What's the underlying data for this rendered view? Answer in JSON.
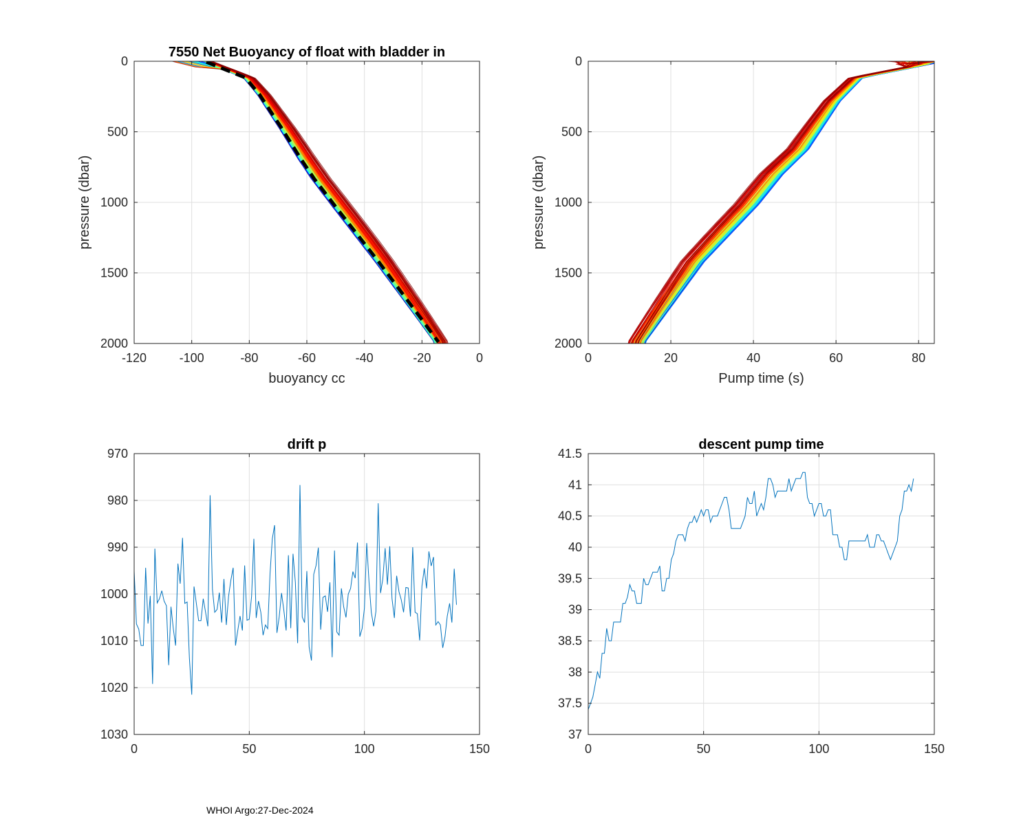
{
  "footer": "WHOI Argo:27-Dec-2024",
  "chart_data": [
    {
      "type": "line",
      "id": "buoyancy",
      "title": "7550 Net Buoyancy of float with bladder in",
      "xlabel": "buoyancy cc",
      "ylabel": "pressure (dbar)",
      "xlim": [
        -120,
        0
      ],
      "ylim": [
        0,
        2000
      ],
      "y_reversed": true,
      "grid": true,
      "xticks": [
        "-120",
        "-100",
        "-80",
        "-60",
        "-40",
        "-20",
        "0"
      ],
      "xtick_values": [
        -120,
        -100,
        -80,
        -60,
        -40,
        -20,
        0
      ],
      "yticks": [
        "0",
        "500",
        "1000",
        "1500",
        "2000"
      ],
      "ytick_values": [
        0,
        500,
        1000,
        1500,
        2000
      ],
      "profile_count": 140,
      "profile_colormap": "jet",
      "mean_profile": {
        "style": "black dashed",
        "x": [
          -94.9,
          -90.8,
          -81.3,
          -76.5,
          -68.6,
          -62.2,
          -57.4,
          -49.5,
          -35.1,
          -20.8,
          -14.3
        ],
        "y": [
          5,
          39,
          117,
          234,
          478,
          688,
          834,
          1044,
          1420,
          1810,
          1990
        ]
      },
      "late_profile_shift": 5,
      "surface_tail_min_x": -107
    },
    {
      "type": "line",
      "id": "pumptime",
      "title": "",
      "xlabel": "Pump time (s)",
      "ylabel": "pressure (dbar)",
      "xlim": [
        0,
        83.8
      ],
      "ylim": [
        0,
        2000
      ],
      "y_reversed": true,
      "grid": true,
      "xticks": [
        "0",
        "20",
        "40",
        "60",
        "80"
      ],
      "xtick_values": [
        0,
        20,
        40,
        60,
        80
      ],
      "yticks": [
        "0",
        "500",
        "1000",
        "1500",
        "2000"
      ],
      "ytick_values": [
        0,
        500,
        1000,
        1500,
        2000
      ],
      "profile_count": 140,
      "profile_colormap": "jet",
      "base_profile": {
        "x": [
          82.5,
          65.8,
          60.3,
          52.5,
          46.3,
          40.3,
          27.0,
          12.5
        ],
        "y": [
          20,
          117,
          283,
          624,
          800,
          1015,
          1420,
          1990
        ]
      },
      "late_profile_shift": -4.5
    },
    {
      "type": "line",
      "id": "driftp",
      "title": "drift p",
      "xlabel": "",
      "ylabel": "",
      "xlim": [
        0,
        150
      ],
      "ylim": [
        970,
        1030
      ],
      "y_reversed": true,
      "grid": true,
      "color": "#0072BD",
      "xticks": [
        "0",
        "50",
        "100",
        "150"
      ],
      "xtick_values": [
        0,
        50,
        100,
        150
      ],
      "yticks": [
        "970",
        "980",
        "990",
        "1000",
        "1010",
        "1020",
        "1030"
      ],
      "ytick_values": [
        970,
        980,
        990,
        1000,
        1010,
        1020,
        1030
      ],
      "values": [
        995.1,
        1006.4,
        1007.5,
        1011,
        1011,
        994.4,
        1006.3,
        1000.4,
        1019.2,
        990.3,
        1001.9,
        1001,
        999.3,
        1001.5,
        1002.5,
        1015.2,
        1002.7,
        1007.4,
        1011,
        993.5,
        997.8,
        988,
        1002,
        1001.7,
        1013.7,
        1021.5,
        998.4,
        1002,
        1005.7,
        1005.7,
        1001,
        1003.8,
        1006.9,
        978.9,
        999,
        1003.9,
        1003.3,
        999.7,
        1006.1,
        996.8,
        1006.6,
        1000.5,
        997,
        994.4,
        1011,
        1007.8,
        1004.7,
        1007.8,
        993.9,
        1005.6,
        1005.4,
        1000.5,
        988.2,
        1005.1,
        1001.5,
        1003.9,
        1008.8,
        1006.6,
        1007.4,
        995.6,
        988.2,
        985.3,
        1008.3,
        1004.9,
        999.8,
        1003.4,
        1007.8,
        991.7,
        1007.3,
        991.4,
        997.5,
        1010.5,
        976.7,
        1004.9,
        1006.1,
        995.1,
        1011.3,
        1014.2,
        995.8,
        993.9,
        990.1,
        1007.6,
        1000.7,
        1000.4,
        1003.8,
        997.5,
        1013.5,
        990.7,
        1008.1,
        1008.8,
        998.8,
        1002.7,
        1005,
        1000,
        998.8,
        995.2,
        996.6,
        989,
        1009.1,
        1007.4,
        1003,
        989.1,
        997.5,
        1003.9,
        1006.9,
        1003.7,
        980.6,
        999.8,
        996.8,
        990.2,
        998,
        989.8,
        1001,
        1005.1,
        996.1,
        999.5,
        1001.2,
        1003.9,
        998.6,
        998.7,
        1004.8,
        990,
        1003.9,
        1004.2,
        1009.9,
        998.3,
        994.5,
        998.8,
        990.9,
        994,
        992.1,
        1006.6,
        1005.9,
        1006.6,
        1011.5,
        1009.1,
        1004.7,
        1002,
        1006.1,
        994.6,
        1002.3
      ]
    },
    {
      "type": "line",
      "id": "descentpump",
      "title": "descent pump time",
      "xlabel": "",
      "ylabel": "",
      "xlim": [
        0,
        150
      ],
      "ylim": [
        37,
        41.5
      ],
      "y_reversed": false,
      "grid": true,
      "color": "#0072BD",
      "xticks": [
        "0",
        "50",
        "100",
        "150"
      ],
      "xtick_values": [
        0,
        50,
        100,
        150
      ],
      "yticks": [
        "37",
        "37.5",
        "38",
        "38.5",
        "39",
        "39.5",
        "40",
        "40.5",
        "41",
        "41.5"
      ],
      "ytick_values": [
        37,
        37.5,
        38,
        38.5,
        39,
        39.5,
        40,
        40.5,
        41,
        41.5
      ],
      "values": [
        37.4,
        37.5,
        37.6,
        37.8,
        38.0,
        37.9,
        38.3,
        38.3,
        38.7,
        38.5,
        38.5,
        38.8,
        38.8,
        38.8,
        38.8,
        39.1,
        39.1,
        39.2,
        39.4,
        39.3,
        39.3,
        39.1,
        39.1,
        39.1,
        39.5,
        39.4,
        39.4,
        39.5,
        39.6,
        39.6,
        39.6,
        39.7,
        39.3,
        39.3,
        39.5,
        39.5,
        39.8,
        39.9,
        40.1,
        40.2,
        40.2,
        40.2,
        40.1,
        40.3,
        40.4,
        40.4,
        40.5,
        40.4,
        40.5,
        40.6,
        40.5,
        40.6,
        40.6,
        40.4,
        40.5,
        40.5,
        40.5,
        40.6,
        40.7,
        40.8,
        40.8,
        40.6,
        40.3,
        40.3,
        40.3,
        40.3,
        40.3,
        40.4,
        40.5,
        40.8,
        40.7,
        40.7,
        40.9,
        40.5,
        40.6,
        40.7,
        40.6,
        40.8,
        41.1,
        41.1,
        41.0,
        40.8,
        40.9,
        40.9,
        40.9,
        40.9,
        40.9,
        41.1,
        40.9,
        41.0,
        41.1,
        41.1,
        41.1,
        41.2,
        41.2,
        40.8,
        40.7,
        40.7,
        40.5,
        40.6,
        40.7,
        40.7,
        40.5,
        40.5,
        40.6,
        40.6,
        40.2,
        40.2,
        40.2,
        40.0,
        40.0,
        39.8,
        39.8,
        40.1,
        40.1,
        40.1,
        40.1,
        40.1,
        40.1,
        40.1,
        40.1,
        40.2,
        40.0,
        40.0,
        40.0,
        40.2,
        40.2,
        40.1,
        40.1,
        40.0,
        39.9,
        39.8,
        39.9,
        40.0,
        40.1,
        40.5,
        40.6,
        40.9,
        40.9,
        41.0,
        40.9,
        41.1
      ]
    }
  ]
}
